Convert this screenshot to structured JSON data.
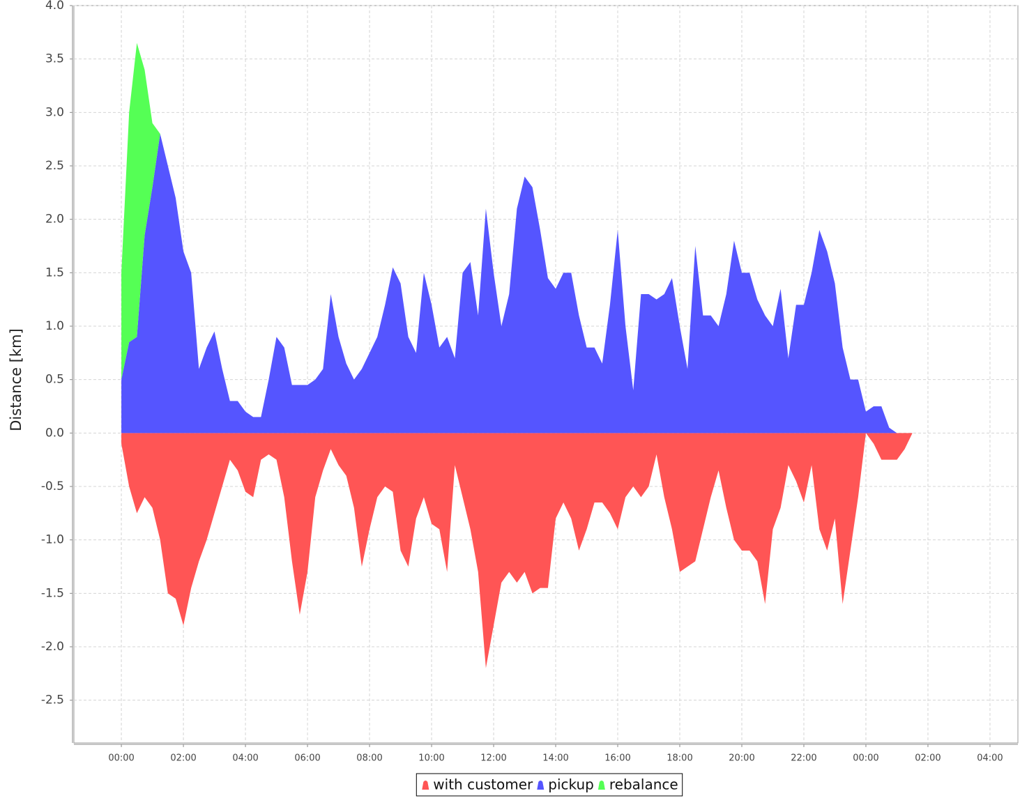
{
  "chart_data": {
    "type": "area",
    "y_label": "Distance [km]",
    "x": [
      0,
      0.25,
      0.5,
      0.75,
      1,
      1.25,
      1.5,
      1.75,
      2,
      2.25,
      2.5,
      2.75,
      3,
      3.25,
      3.5,
      3.75,
      4,
      4.25,
      4.5,
      4.75,
      5,
      5.25,
      5.5,
      5.75,
      6,
      6.25,
      6.5,
      6.75,
      7,
      7.25,
      7.5,
      7.75,
      8,
      8.25,
      8.5,
      8.75,
      9,
      9.25,
      9.5,
      9.75,
      10,
      10.25,
      10.5,
      10.75,
      11,
      11.25,
      11.5,
      11.75,
      12,
      12.25,
      12.5,
      12.75,
      13,
      13.25,
      13.5,
      13.75,
      14,
      14.25,
      14.5,
      14.75,
      15,
      15.25,
      15.5,
      15.75,
      16,
      16.25,
      16.5,
      16.75,
      17,
      17.25,
      17.5,
      17.75,
      18,
      18.25,
      18.5,
      18.75,
      19,
      19.25,
      19.5,
      19.75,
      20,
      20.25,
      20.5,
      20.75,
      21,
      21.25,
      21.5,
      21.75,
      22,
      22.25,
      22.5,
      22.75,
      23,
      23.25,
      23.5,
      23.75,
      24,
      24.25,
      24.5,
      24.75,
      25,
      25.25,
      25.5
    ],
    "series": [
      {
        "name": "with customer",
        "color": "#ff5555",
        "values": [
          -0.1,
          -0.5,
          -0.75,
          -0.6,
          -0.7,
          -1.0,
          -1.5,
          -1.55,
          -1.8,
          -1.45,
          -1.2,
          -1.0,
          -0.75,
          -0.5,
          -0.25,
          -0.35,
          -0.55,
          -0.6,
          -0.25,
          -0.2,
          -0.25,
          -0.6,
          -1.2,
          -1.7,
          -1.3,
          -0.6,
          -0.35,
          -0.15,
          -0.3,
          -0.4,
          -0.7,
          -1.25,
          -0.9,
          -0.6,
          -0.5,
          -0.55,
          -1.1,
          -1.25,
          -0.8,
          -0.6,
          -0.85,
          -0.9,
          -1.3,
          -0.3,
          -0.6,
          -0.9,
          -1.3,
          -2.2,
          -1.8,
          -1.4,
          -1.3,
          -1.4,
          -1.3,
          -1.5,
          -1.45,
          -1.45,
          -0.8,
          -0.65,
          -0.8,
          -1.1,
          -0.9,
          -0.65,
          -0.65,
          -0.75,
          -0.9,
          -0.6,
          -0.5,
          -0.6,
          -0.5,
          -0.2,
          -0.6,
          -0.9,
          -1.3,
          -1.25,
          -1.2,
          -0.9,
          -0.6,
          -0.35,
          -0.7,
          -1.0,
          -1.1,
          -1.1,
          -1.2,
          -1.6,
          -0.9,
          -0.7,
          -0.3,
          -0.45,
          -0.65,
          -0.3,
          -0.9,
          -1.1,
          -0.8,
          -1.6,
          -1.1,
          -0.6,
          0,
          -0.1,
          -0.25,
          -0.25,
          -0.25,
          -0.15,
          0
        ]
      },
      {
        "name": "pickup",
        "color": "#5555ff",
        "values": [
          0.5,
          0.85,
          0.9,
          1.85,
          2.3,
          2.8,
          2.5,
          2.2,
          1.7,
          1.5,
          0.6,
          0.8,
          0.95,
          0.6,
          0.3,
          0.3,
          0.2,
          0.15,
          0.15,
          0.5,
          0.9,
          0.8,
          0.45,
          0.45,
          0.45,
          0.5,
          0.6,
          1.3,
          0.9,
          0.65,
          0.5,
          0.6,
          0.75,
          0.9,
          1.2,
          1.55,
          1.4,
          0.9,
          0.75,
          1.5,
          1.2,
          0.8,
          0.9,
          0.7,
          1.5,
          1.6,
          1.1,
          2.1,
          1.5,
          1.0,
          1.3,
          2.1,
          2.4,
          2.3,
          1.9,
          1.45,
          1.35,
          1.5,
          1.5,
          1.1,
          0.8,
          0.8,
          0.65,
          1.2,
          1.9,
          1.0,
          0.4,
          1.3,
          1.3,
          1.25,
          1.3,
          1.45,
          1.0,
          0.6,
          1.75,
          1.1,
          1.1,
          1.0,
          1.3,
          1.8,
          1.5,
          1.5,
          1.25,
          1.1,
          1.0,
          1.35,
          0.7,
          1.2,
          1.2,
          1.5,
          1.9,
          1.7,
          1.4,
          0.8,
          0.5,
          0.5,
          0.2,
          0.25,
          0.25,
          0.05,
          0,
          0,
          0
        ]
      },
      {
        "name": "rebalance",
        "color": "#55ff55",
        "values": [
          1.0,
          2.15,
          2.75,
          1.55,
          0.6,
          0,
          0,
          0,
          0,
          0,
          0,
          0,
          0,
          0,
          0,
          0,
          0,
          0,
          0,
          0,
          0,
          0,
          0,
          0,
          0,
          0,
          0,
          0,
          0,
          0,
          0,
          0,
          0,
          0,
          0,
          0,
          0,
          0,
          0,
          0,
          0,
          0,
          0,
          0,
          0,
          0,
          0,
          0,
          0,
          0,
          0,
          0,
          0,
          0,
          0,
          0,
          0,
          0,
          0,
          0,
          0,
          0,
          0,
          0,
          0,
          0,
          0,
          0,
          0,
          0,
          0,
          0,
          0,
          0,
          0,
          0,
          0,
          0,
          0,
          0,
          0,
          0,
          0,
          0,
          0,
          0,
          0,
          0,
          0,
          0,
          0,
          0,
          0,
          0,
          0,
          0,
          0,
          0,
          0,
          0,
          0,
          0,
          0
        ]
      }
    ],
    "stacked": true,
    "xlim": [
      -1.53,
      28.9
    ],
    "ylim": [
      -2.9,
      4.0
    ],
    "xticks": [
      {
        "value": 0,
        "label": "00:00"
      },
      {
        "value": 2,
        "label": "02:00"
      },
      {
        "value": 4,
        "label": "04:00"
      },
      {
        "value": 6,
        "label": "06:00"
      },
      {
        "value": 8,
        "label": "08:00"
      },
      {
        "value": 10,
        "label": "10:00"
      },
      {
        "value": 12,
        "label": "12:00"
      },
      {
        "value": 14,
        "label": "14:00"
      },
      {
        "value": 16,
        "label": "16:00"
      },
      {
        "value": 18,
        "label": "18:00"
      },
      {
        "value": 20,
        "label": "20:00"
      },
      {
        "value": 22,
        "label": "22:00"
      },
      {
        "value": 24,
        "label": "00:00"
      },
      {
        "value": 26,
        "label": "02:00"
      },
      {
        "value": 28,
        "label": "04:00"
      }
    ],
    "yticks": [
      -2.5,
      {
        "value": -2,
        "label": "-2.0"
      },
      -1.5,
      {
        "value": -1,
        "label": "-1.0"
      },
      -0.5,
      {
        "value": 0,
        "label": "0.0"
      },
      0.5,
      {
        "value": 1,
        "label": "1.0"
      },
      1.5,
      {
        "value": 2,
        "label": "2.0"
      },
      2.5,
      {
        "value": 3,
        "label": "3.0"
      },
      3.5,
      {
        "value": 4,
        "label": "4.0"
      }
    ],
    "grid": true,
    "legend": "bottom"
  }
}
